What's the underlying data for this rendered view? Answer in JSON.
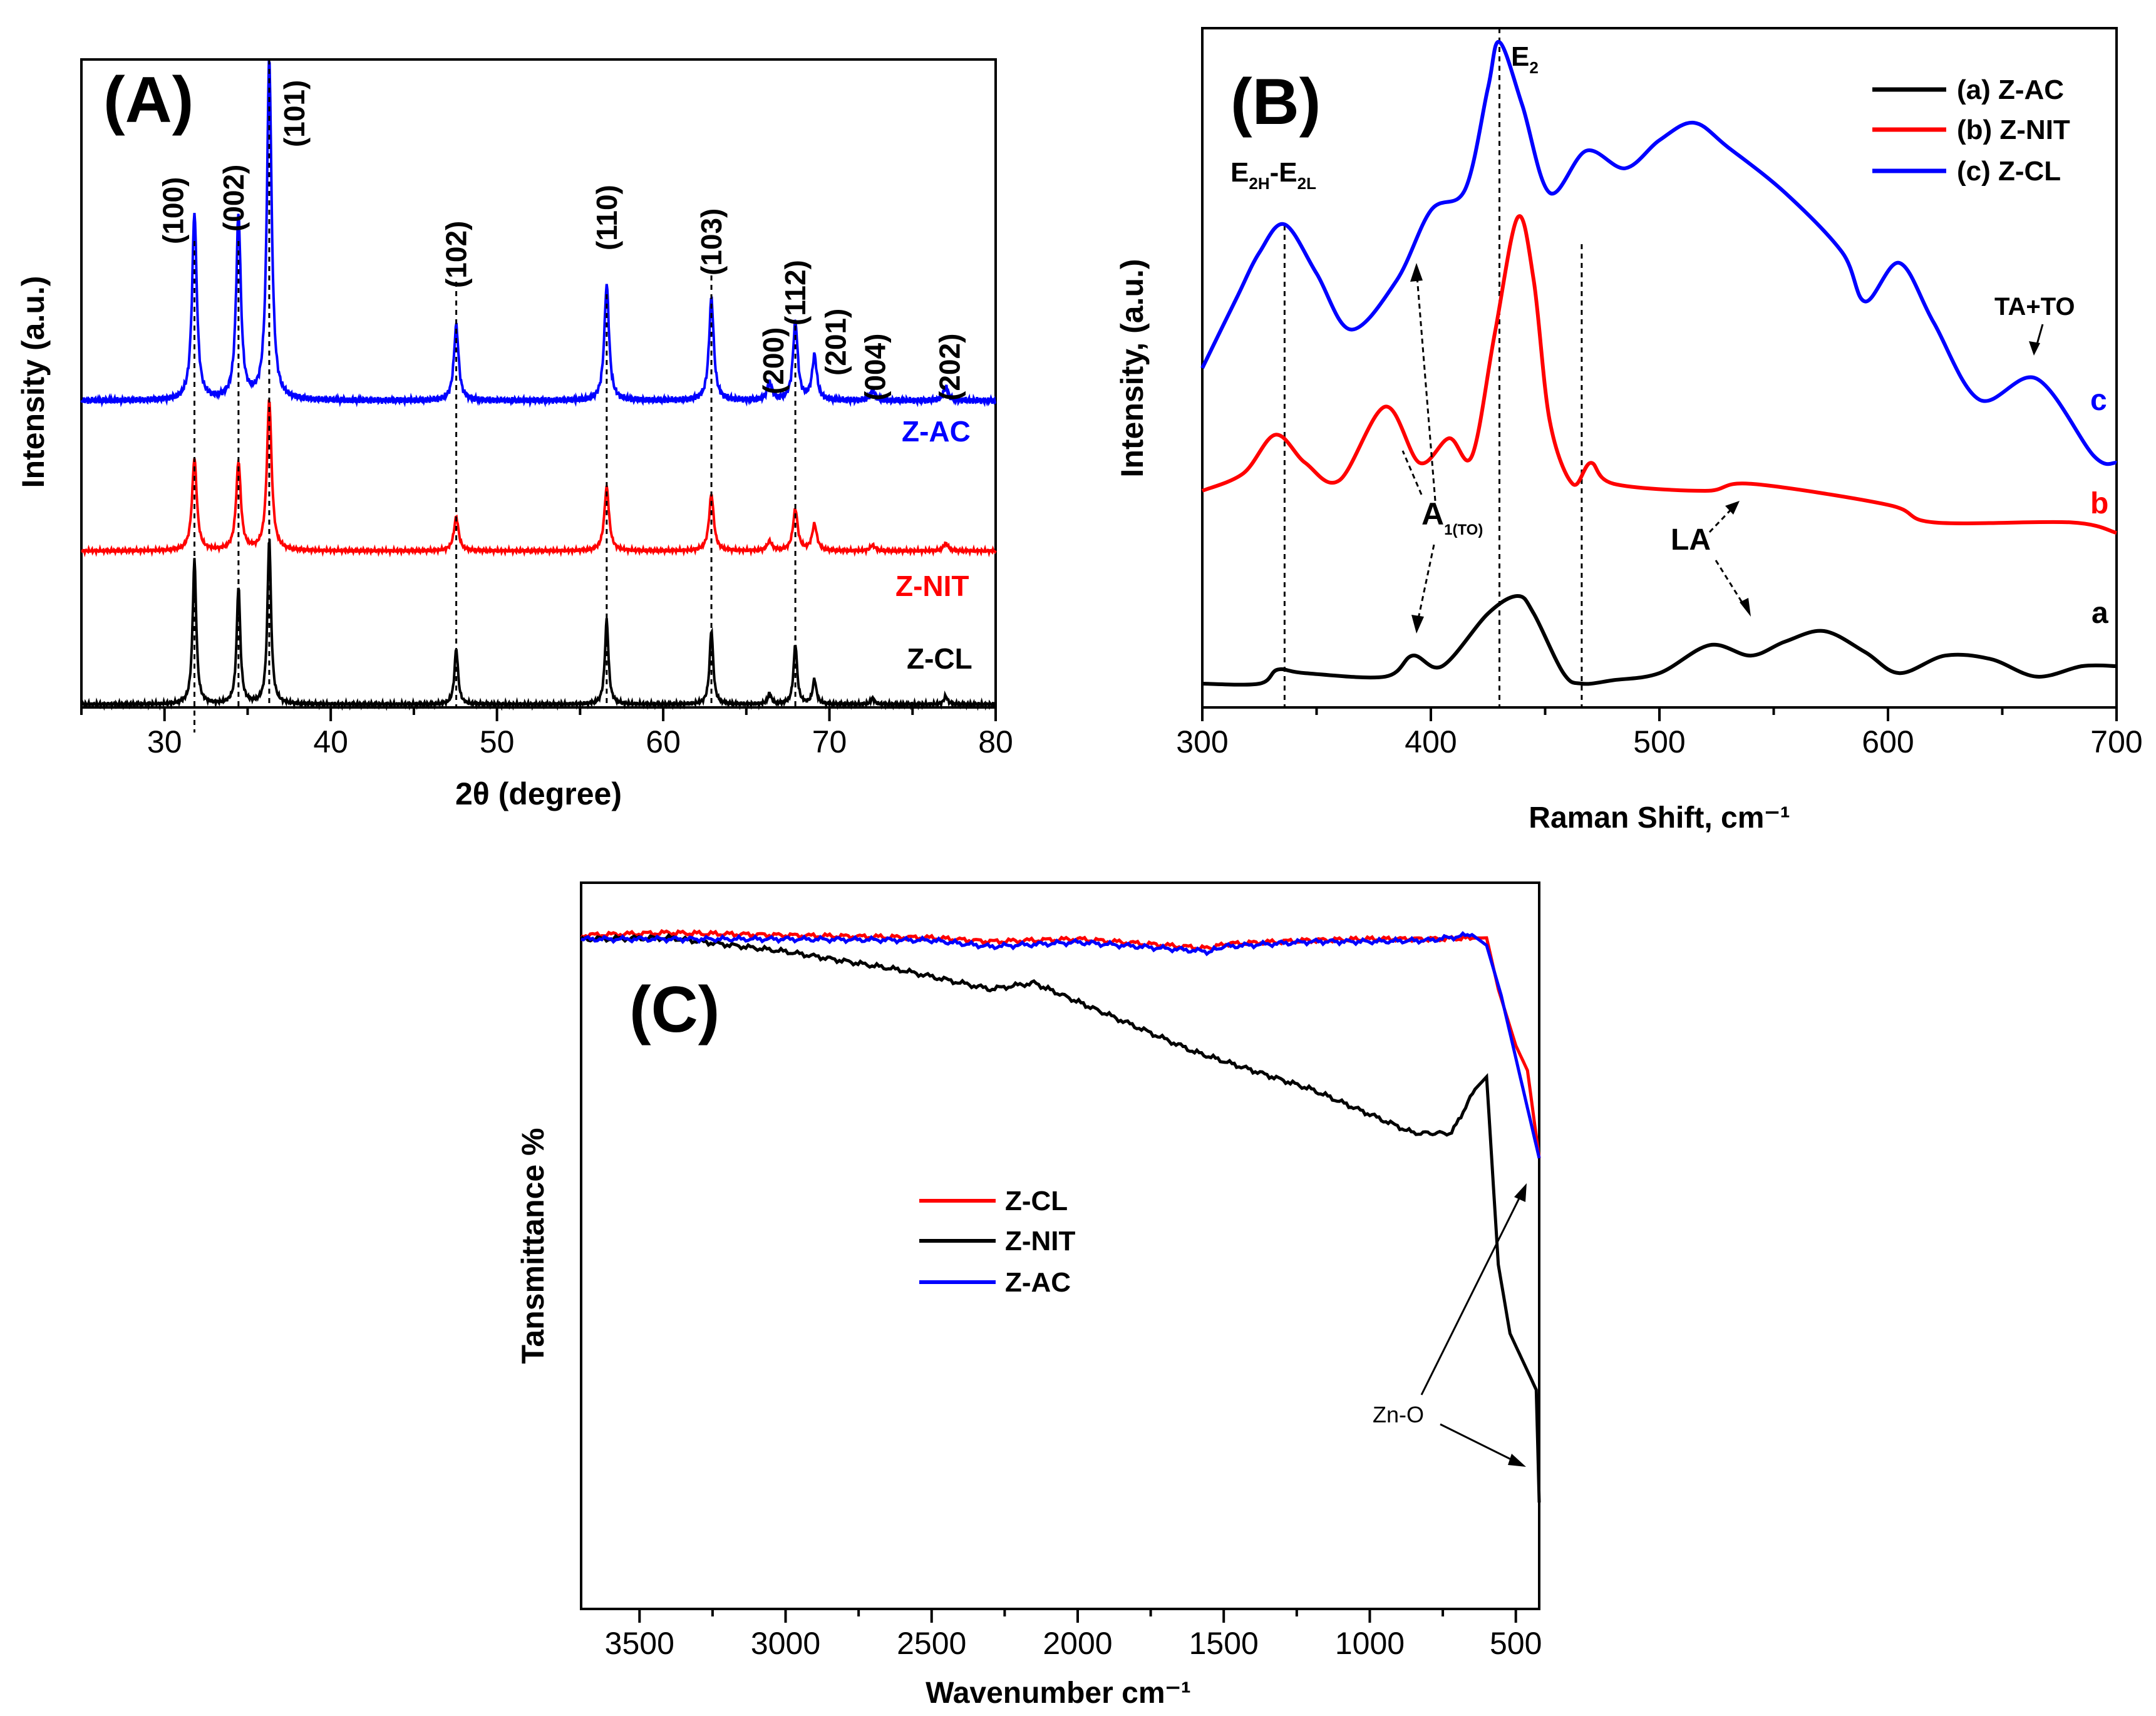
{
  "colors": {
    "black": "#000000",
    "red": "#ff0000",
    "blue": "#0000ff"
  },
  "panel_a": {
    "panel_label": "(A)",
    "xlabel": "2θ (degree)",
    "ylabel": "Intensity (a.u.)",
    "xlim": [
      25,
      80
    ],
    "x_ticks": [
      "30",
      "40",
      "50",
      "60",
      "70",
      "80"
    ],
    "curve_labels": [
      {
        "text": "Z-AC",
        "color": "#0000ff"
      },
      {
        "text": "Z-NIT",
        "color": "#ff0000"
      },
      {
        "text": "Z-CL",
        "color": "#000000"
      }
    ],
    "hkl_labels": [
      "(100)",
      "(002)",
      "(101)",
      "(102)",
      "(110)",
      "(103)",
      "(200)",
      "(112)",
      "(201)",
      "(004)",
      "(202)"
    ]
  },
  "panel_b": {
    "panel_label": "(B)",
    "xlabel": "Raman Shift, cm⁻¹",
    "ylabel": "Intensity, (a.u.)",
    "xlim": [
      300,
      700
    ],
    "x_ticks": [
      "300",
      "400",
      "500",
      "600",
      "700"
    ],
    "legend": [
      "(a) Z-AC",
      "(b) Z-NIT",
      "(c) Z-CL"
    ],
    "curve_letters": [
      "a",
      "b",
      "c"
    ],
    "annotations": {
      "e2h_base": "E",
      "e2h_sub1": "2H",
      "e2h_dash": "-E",
      "e2h_sub2": "2L",
      "e2_base": "E",
      "e2_sub": "2",
      "a1_base": "A",
      "a1_sub": "1(TO)",
      "la": "LA",
      "tato": "TA+TO"
    }
  },
  "panel_c": {
    "panel_label": "(C)",
    "xlabel": "Wavenumber cm⁻¹",
    "ylabel": "Tansmittance %",
    "xlim": [
      3700,
      420
    ],
    "x_ticks": [
      "3500",
      "3000",
      "2500",
      "2000",
      "1500",
      "1000",
      "500"
    ],
    "legend": [
      "Z-CL",
      "Z-NIT",
      "Z-AC"
    ],
    "annotation": "Zn-O"
  },
  "chart_data": [
    {
      "type": "line",
      "xlabel": "2θ (degree)",
      "ylabel": "Intensity (a.u.)",
      "xlim": [
        25,
        80
      ],
      "peaks_2theta": [
        31.8,
        34.45,
        36.3,
        47.55,
        56.6,
        62.9,
        66.4,
        67.95,
        69.1,
        72.6,
        77.0
      ],
      "series": [
        {
          "name": "Z-AC",
          "color": "#0000ff",
          "peak_heights": [
            0.55,
            0.54,
            1.0,
            0.22,
            0.34,
            0.3,
            0.05,
            0.23,
            0.13,
            0.03,
            0.04
          ]
        },
        {
          "name": "Z-NIT",
          "color": "#ff0000",
          "peak_heights": [
            0.49,
            0.47,
            0.8,
            0.18,
            0.34,
            0.3,
            0.05,
            0.22,
            0.14,
            0.03,
            0.04
          ]
        },
        {
          "name": "Z-CL",
          "color": "#000000",
          "peak_heights": [
            0.7,
            0.57,
            0.8,
            0.27,
            0.41,
            0.36,
            0.05,
            0.29,
            0.12,
            0.03,
            0.04
          ]
        }
      ]
    },
    {
      "type": "line",
      "xlabel": "Raman Shift, cm⁻¹",
      "ylabel": "Intensity, (a.u.)",
      "xlim": [
        300,
        700
      ],
      "reference_lines": [
        336,
        430,
        466
      ],
      "series": [
        {
          "name": "(a) Z-AC",
          "color": "#000000",
          "x": [
            300,
            325,
            333,
            345,
            380,
            392,
            405,
            425,
            438,
            445,
            458,
            466,
            480,
            500,
            522,
            540,
            555,
            572,
            590,
            605,
            625,
            645,
            665,
            685,
            700
          ],
          "y": [
            0.05,
            0.05,
            0.09,
            0.08,
            0.07,
            0.13,
            0.1,
            0.25,
            0.3,
            0.25,
            0.08,
            0.05,
            0.06,
            0.08,
            0.16,
            0.13,
            0.17,
            0.2,
            0.14,
            0.08,
            0.13,
            0.12,
            0.07,
            0.1,
            0.1
          ]
        },
        {
          "name": "(b) Z-NIT",
          "color": "#ff0000",
          "x": [
            300,
            318,
            332,
            345,
            360,
            380,
            395,
            408,
            418,
            428,
            438,
            445,
            452,
            462,
            470,
            480,
            520,
            540,
            600,
            620,
            680,
            700
          ],
          "y": [
            0.6,
            0.65,
            0.76,
            0.68,
            0.63,
            0.84,
            0.68,
            0.75,
            0.7,
            1.05,
            1.38,
            1.2,
            0.8,
            0.62,
            0.68,
            0.62,
            0.6,
            0.62,
            0.56,
            0.51,
            0.51,
            0.48
          ]
        },
        {
          "name": "(c) Z-CL",
          "color": "#0000ff",
          "x": [
            300,
            315,
            325,
            336,
            350,
            365,
            385,
            400,
            415,
            425,
            430,
            440,
            452,
            468,
            485,
            500,
            515,
            530,
            555,
            580,
            590,
            605,
            620,
            640,
            665,
            690,
            700
          ],
          "y": [
            0.95,
            1.15,
            1.28,
            1.36,
            1.22,
            1.06,
            1.2,
            1.4,
            1.46,
            1.75,
            1.88,
            1.7,
            1.45,
            1.57,
            1.52,
            1.6,
            1.65,
            1.58,
            1.45,
            1.28,
            1.14,
            1.25,
            1.08,
            0.86,
            0.92,
            0.7,
            0.68
          ]
        }
      ]
    },
    {
      "type": "line",
      "xlabel": "Wavenumber cm⁻¹",
      "ylabel": "Tansmittance %",
      "xlim": [
        3700,
        420
      ],
      "series": [
        {
          "name": "Z-CL",
          "color": "#ff0000",
          "x": [
            3700,
            3400,
            3000,
            2500,
            2300,
            2000,
            1700,
            1550,
            1500,
            1200,
            1000,
            800,
            600,
            560,
            500,
            460,
            420
          ],
          "y": [
            0.976,
            0.98,
            0.976,
            0.972,
            0.966,
            0.97,
            0.96,
            0.955,
            0.962,
            0.968,
            0.97,
            0.97,
            0.972,
            0.89,
            0.8,
            0.76,
            0.62
          ]
        },
        {
          "name": "Z-NIT",
          "color": "#000000",
          "x": [
            3700,
            3400,
            3000,
            2600,
            2300,
            2150,
            1900,
            1600,
            1400,
            1200,
            1000,
            850,
            720,
            640,
            600,
            560,
            520,
            480,
            430,
            420
          ],
          "y": [
            0.97,
            0.972,
            0.95,
            0.92,
            0.89,
            0.9,
            0.85,
            0.79,
            0.76,
            0.73,
            0.69,
            0.66,
            0.66,
            0.73,
            0.75,
            0.45,
            0.34,
            0.3,
            0.25,
            0.07
          ]
        },
        {
          "name": "Z-AC",
          "color": "#0000ff",
          "x": [
            3700,
            3400,
            3000,
            2500,
            2300,
            2000,
            1700,
            1550,
            1500,
            1200,
            1000,
            800,
            650,
            600,
            550,
            500,
            460,
            420
          ],
          "y": [
            0.97,
            0.97,
            0.97,
            0.968,
            0.958,
            0.965,
            0.955,
            0.95,
            0.958,
            0.966,
            0.966,
            0.968,
            0.977,
            0.96,
            0.88,
            0.78,
            0.7,
            0.62
          ]
        }
      ]
    }
  ]
}
